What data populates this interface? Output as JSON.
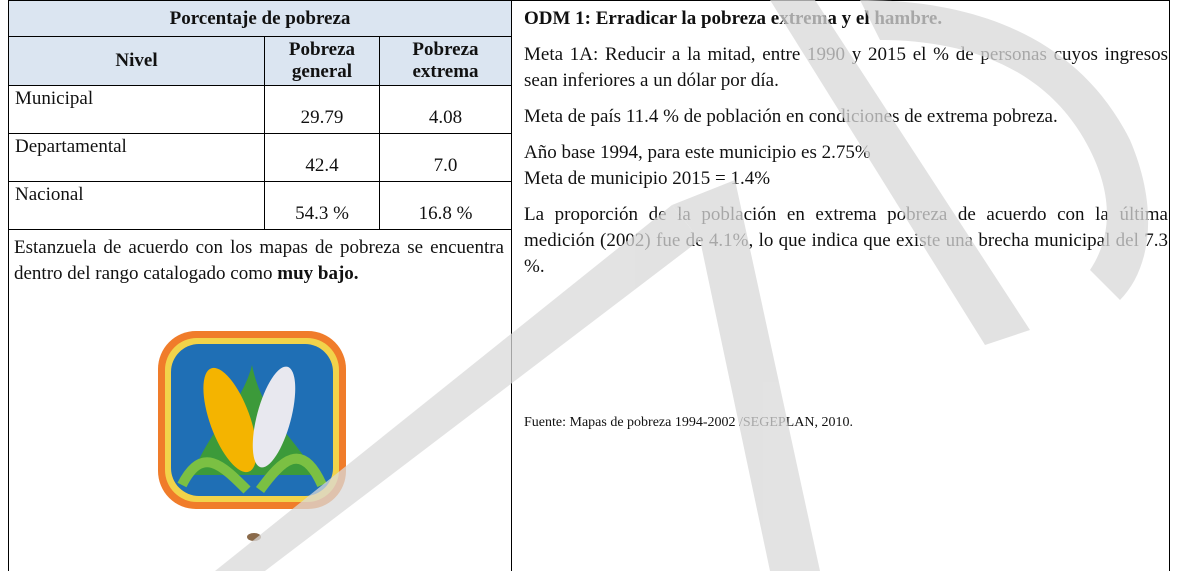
{
  "left": {
    "table": {
      "title": "Porcentaje  de pobreza",
      "headers": [
        "Nivel",
        "Pobreza general",
        "Pobreza extrema"
      ],
      "rows": [
        [
          "Municipal",
          "29.79",
          "4.08"
        ],
        [
          "Departamental",
          "42.4",
          "7.0"
        ],
        [
          "Nacional",
          "54.3 %",
          "16.8 %"
        ]
      ]
    },
    "paragraph": {
      "text": "Estanzuela de acuerdo con los mapas de pobreza se encuentra dentro del rango catalogado como",
      "bold": "muy bajo."
    }
  },
  "right": {
    "heading": "ODM 1: Erradicar la pobreza extrema y el hambre.",
    "paragraphs": [
      "Meta 1A: Reducir a la mitad, entre 1990 y 2015 el % de personas cuyos ingresos sean inferiores a un dólar por día.",
      "Meta de país 11.4 % de población en condiciones de extrema pobreza.",
      "Año base 1994, para este  municipio es  2.75%",
      "Meta de municipio 2015 = 1.4%",
      "La proporción de la población en extrema pobreza de acuerdo con la última medición (2002) fue de 4.1%, lo que indica que existe una brecha municipal  del  7.3 %."
    ],
    "source": "Fuente: Mapas de pobreza 1994-2002 /SEGEPLAN, 2010."
  }
}
